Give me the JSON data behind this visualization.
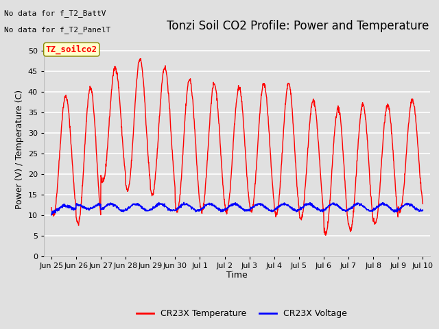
{
  "title": "Tonzi Soil CO2 Profile: Power and Temperature",
  "ylabel": "Power (V) / Temperature (C)",
  "xlabel": "Time",
  "no_data_text1": "No data for f_T2_BattV",
  "no_data_text2": "No data for f_T2_PanelT",
  "legend_box_label": "TZ_soilco2",
  "ylim": [
    0,
    52
  ],
  "yticks": [
    0,
    5,
    10,
    15,
    20,
    25,
    30,
    35,
    40,
    45,
    50
  ],
  "xtick_labels": [
    "Jun 25",
    "Jun 26",
    "Jun 27",
    "Jun 28",
    "Jun 29",
    "Jun 30",
    "Jul 1",
    "Jul 2",
    "Jul 3",
    "Jul 4",
    "Jul 5",
    "Jul 6",
    "Jul 7",
    "Jul 8",
    "Jul 9",
    "Jul 10"
  ],
  "bg_color": "#e0e0e0",
  "plot_bg_color": "#e0e0e0",
  "grid_color": "#ffffff",
  "temp_color": "#ff0000",
  "volt_color": "#0000ff",
  "legend_temp": "CR23X Temperature",
  "legend_volt": "CR23X Voltage",
  "title_fontsize": 12,
  "label_fontsize": 9,
  "tick_fontsize": 8,
  "no_data_fontsize": 8,
  "peak_temps": [
    39,
    41,
    46,
    48,
    46,
    43,
    42,
    41,
    42,
    42,
    38,
    36,
    37,
    37,
    38
  ],
  "trough_temps": [
    10,
    8,
    18,
    16,
    15,
    11,
    11,
    11,
    11,
    10,
    9,
    5.5,
    6.5,
    8,
    11
  ]
}
